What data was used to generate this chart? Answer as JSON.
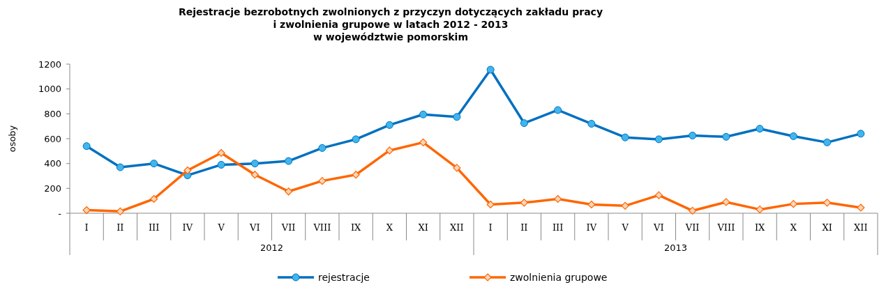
{
  "chart_data": {
    "type": "line",
    "title": "Rejestracje bezrobotnych zwolnionych z przyczyn dotyczących zakładu pracy\ni zwolnienia grupowe w latach 2012 - 2013\nw województwie pomorskim",
    "ylabel": "osoby",
    "categories": [
      "I",
      "II",
      "III",
      "IV",
      "V",
      "VI",
      "VII",
      "VIII",
      "IX",
      "X",
      "XI",
      "XII",
      "I",
      "II",
      "III",
      "IV",
      "V",
      "VI",
      "VII",
      "VIII",
      "IX",
      "X",
      "XI",
      "XII"
    ],
    "annotations": [
      "2012",
      "2013"
    ],
    "ylim": [
      0,
      1200
    ],
    "yticks": [
      {
        "value": 0,
        "label": "-"
      },
      200,
      400,
      600,
      800,
      1000,
      1200
    ],
    "grid": false,
    "legend": "bottom",
    "series": [
      {
        "name": "rejestracje",
        "color": "#0070c0",
        "marker": "circle",
        "values": [
          540,
          370,
          400,
          305,
          390,
          400,
          420,
          525,
          595,
          710,
          795,
          775,
          1155,
          725,
          830,
          720,
          610,
          595,
          625,
          615,
          680,
          620,
          570,
          640
        ]
      },
      {
        "name": "zwolnienia grupowe",
        "color": "#ff6600",
        "marker": "diamond",
        "values": [
          25,
          15,
          115,
          345,
          485,
          310,
          175,
          260,
          310,
          505,
          570,
          365,
          70,
          85,
          115,
          70,
          60,
          145,
          20,
          90,
          30,
          75,
          85,
          45
        ]
      }
    ]
  }
}
